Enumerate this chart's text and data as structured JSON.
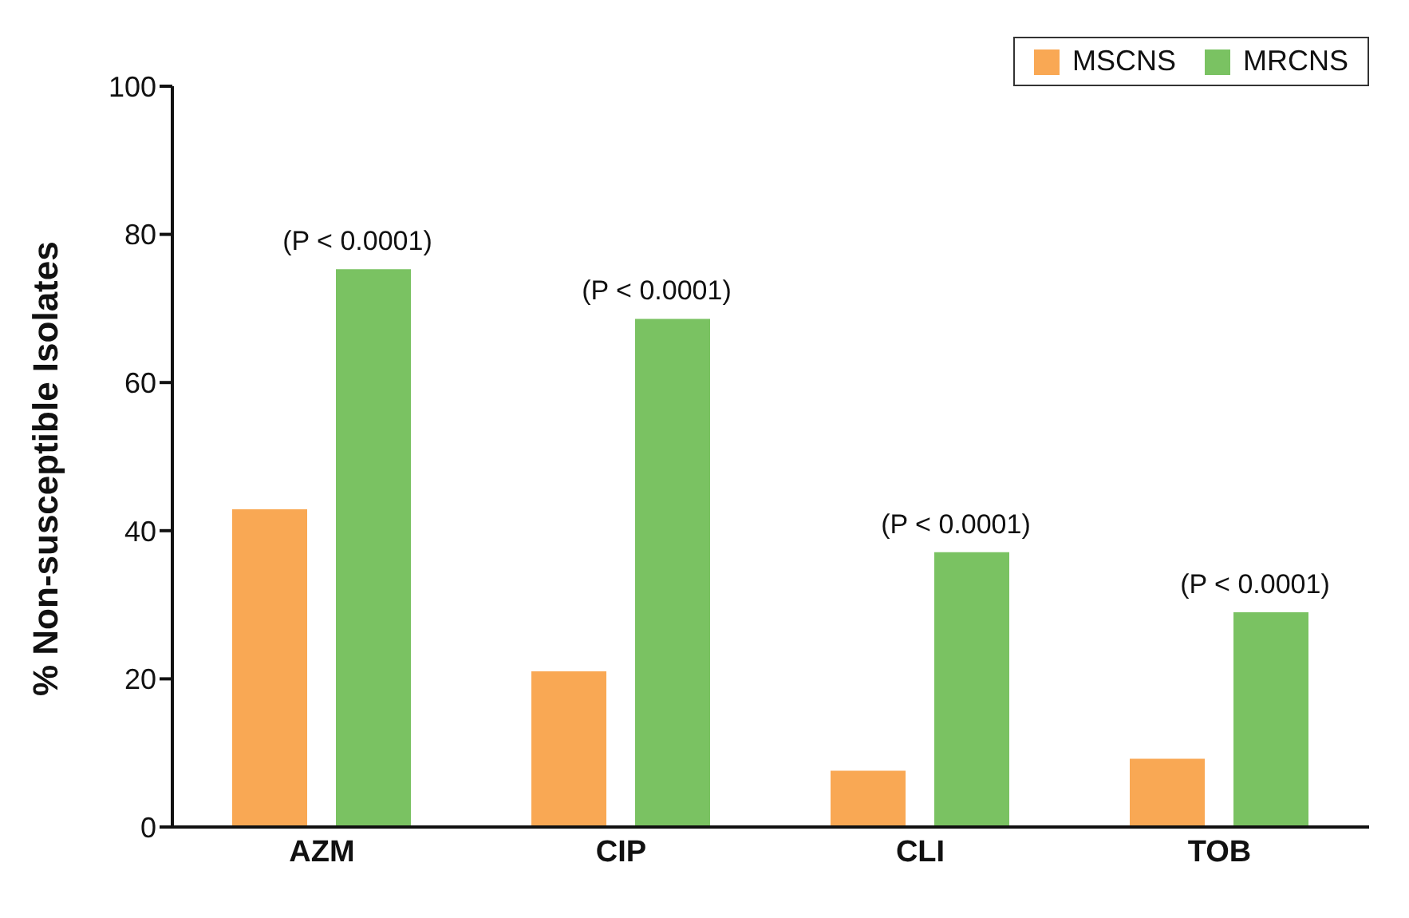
{
  "chart_data": {
    "type": "bar",
    "ylabel": "%  Non-susceptible Isolates",
    "categories": [
      "AZM",
      "CIP",
      "CLI",
      "TOB"
    ],
    "series": [
      {
        "name": "MSCNS",
        "color": "#f9a854",
        "values": [
          42.9,
          21.0,
          7.6,
          9.2
        ]
      },
      {
        "name": "MRCNS",
        "color": "#7ac262",
        "values": [
          75.3,
          68.6,
          37.1,
          29.0
        ]
      }
    ],
    "ylim": [
      0,
      100
    ],
    "yticks": [
      0,
      20,
      40,
      60,
      80,
      100
    ],
    "grid": false,
    "legend": "top right",
    "annotations": [
      "(P < 0.0001)",
      "(P < 0.0001)",
      "(P < 0.0001)",
      "(P < 0.0001)"
    ]
  }
}
